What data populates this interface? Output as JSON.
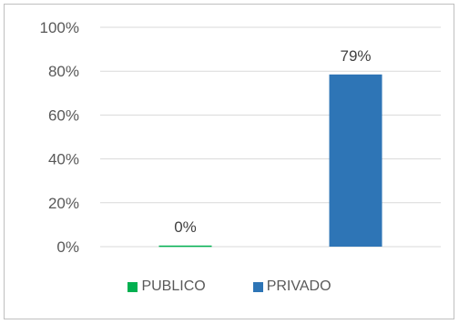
{
  "chart_data": {
    "type": "bar",
    "categories": [
      "PUBLICO",
      "PRIVADO"
    ],
    "values": [
      0.5,
      78.5
    ],
    "data_labels": [
      "0%",
      "79%"
    ],
    "series": [
      {
        "name": "PUBLICO",
        "color": "#00b050"
      },
      {
        "name": "PRIVADO",
        "color": "#2e75b6"
      }
    ],
    "y_ticks": [
      "0%",
      "20%",
      "40%",
      "60%",
      "80%",
      "100%"
    ],
    "ylim": [
      0,
      100
    ],
    "grid": true,
    "legend_position": "bottom",
    "gridline_color": "#d9d9d9"
  }
}
